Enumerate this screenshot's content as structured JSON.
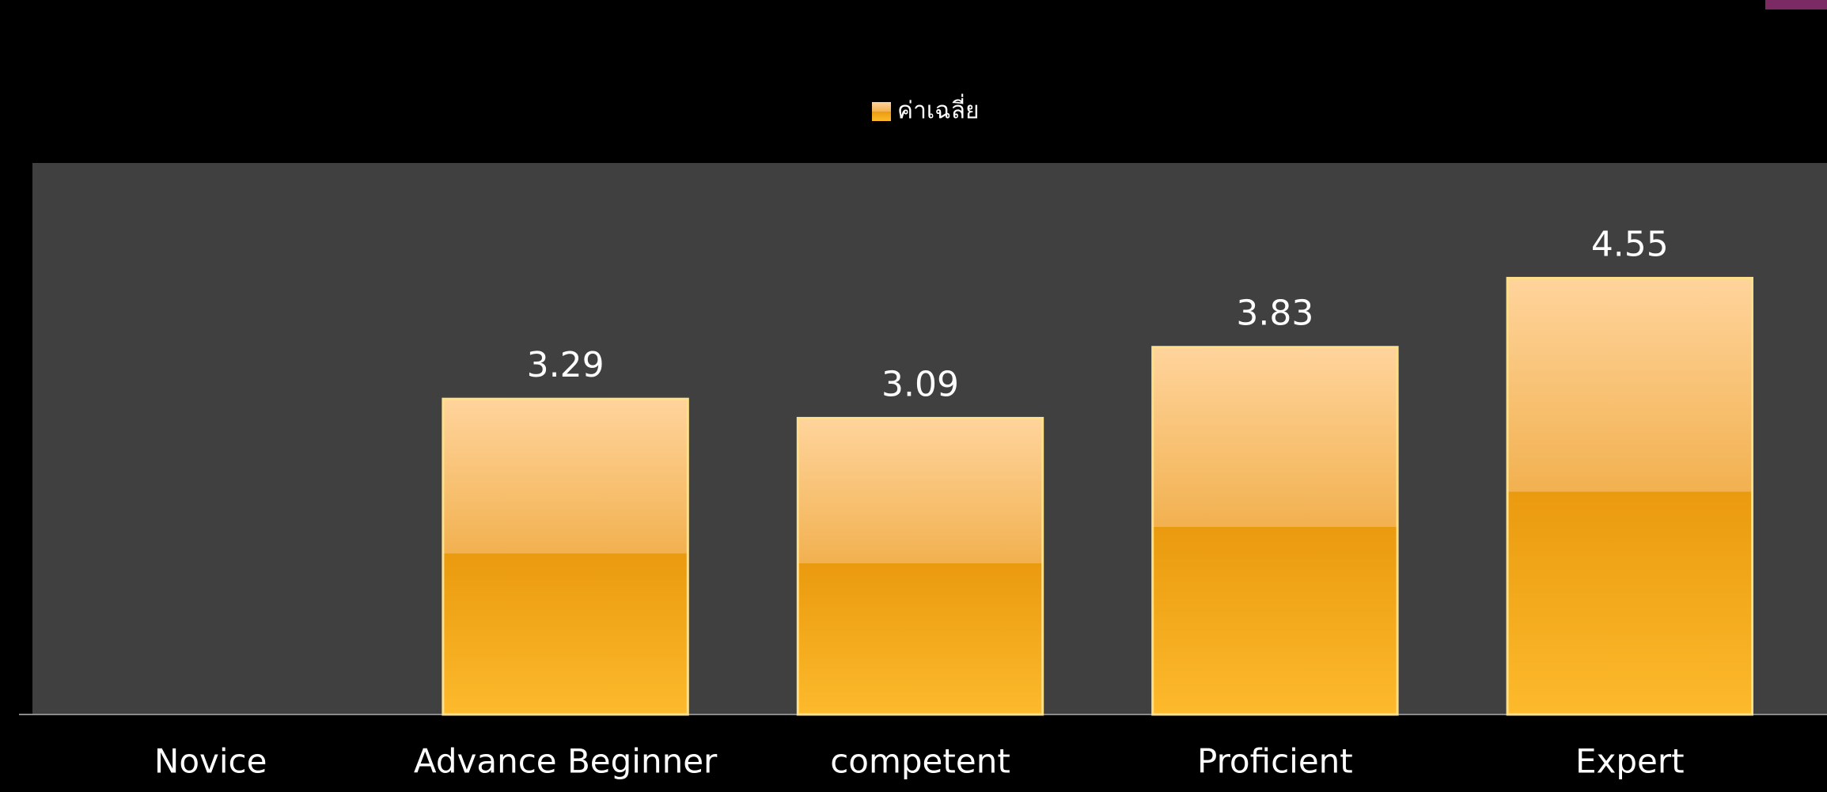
{
  "chart_data": {
    "type": "bar",
    "legend": "ค่าเฉลี่ย",
    "categories": [
      "Novice",
      "Advance Beginner",
      "competent",
      "Proficient",
      "Expert"
    ],
    "values": [
      null,
      3.29,
      3.09,
      3.83,
      4.55
    ],
    "color": "#f5a623",
    "ylim": [
      0,
      5.75
    ],
    "legend_position": "top"
  }
}
